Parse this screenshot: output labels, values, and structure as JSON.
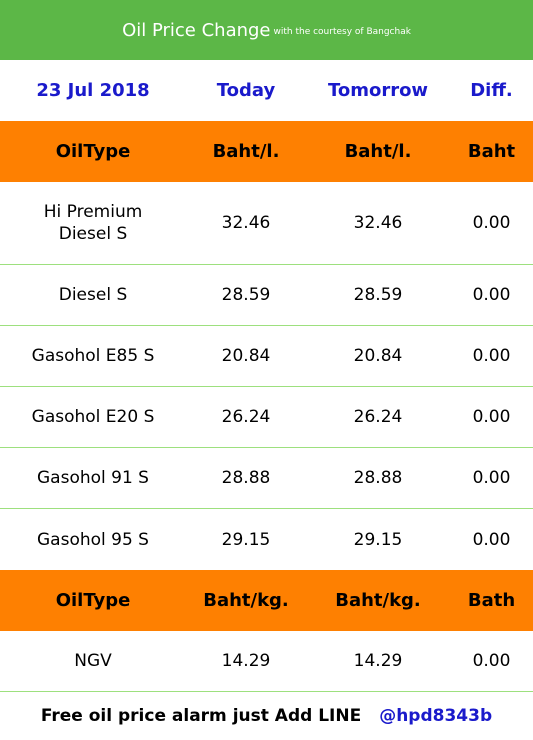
{
  "header": {
    "title": "Oil Price Change",
    "courtesy": "with the courtesy of Bangchak"
  },
  "date_row": {
    "date": "23 Jul 2018",
    "today": "Today",
    "tomorrow": "Tomorrow",
    "diff": "Diff."
  },
  "liquid_header": {
    "type": "OilType",
    "today_unit": "Baht/l.",
    "tomorrow_unit": "Baht/l.",
    "diff_unit": "Baht"
  },
  "liquid_rows": [
    {
      "name": "Hi Premium\nDiesel S",
      "today": "32.46",
      "tomorrow": "32.46",
      "diff": "0.00"
    },
    {
      "name": "Diesel S",
      "today": "28.59",
      "tomorrow": "28.59",
      "diff": "0.00"
    },
    {
      "name": "Gasohol E85 S",
      "today": "20.84",
      "tomorrow": "20.84",
      "diff": "0.00"
    },
    {
      "name": "Gasohol E20 S",
      "today": "26.24",
      "tomorrow": "26.24",
      "diff": "0.00"
    },
    {
      "name": "Gasohol 91 S",
      "today": "28.88",
      "tomorrow": "28.88",
      "diff": "0.00"
    },
    {
      "name": "Gasohol 95 S",
      "today": "29.15",
      "tomorrow": "29.15",
      "diff": "0.00"
    }
  ],
  "gas_header": {
    "type": "OilType",
    "today_unit": "Baht/kg.",
    "tomorrow_unit": "Baht/kg.",
    "diff_unit": "Bath"
  },
  "gas_rows": [
    {
      "name": "NGV",
      "today": "14.29",
      "tomorrow": "14.29",
      "diff": "0.00"
    }
  ],
  "footer": {
    "message": "Free oil price alarm just Add LINE",
    "handle": "@hpd8343b"
  },
  "colors": {
    "header_bg": "#5cb747",
    "section_bg": "#fe8001",
    "accent_blue": "#1a1acb",
    "divider": "#9de07e"
  }
}
